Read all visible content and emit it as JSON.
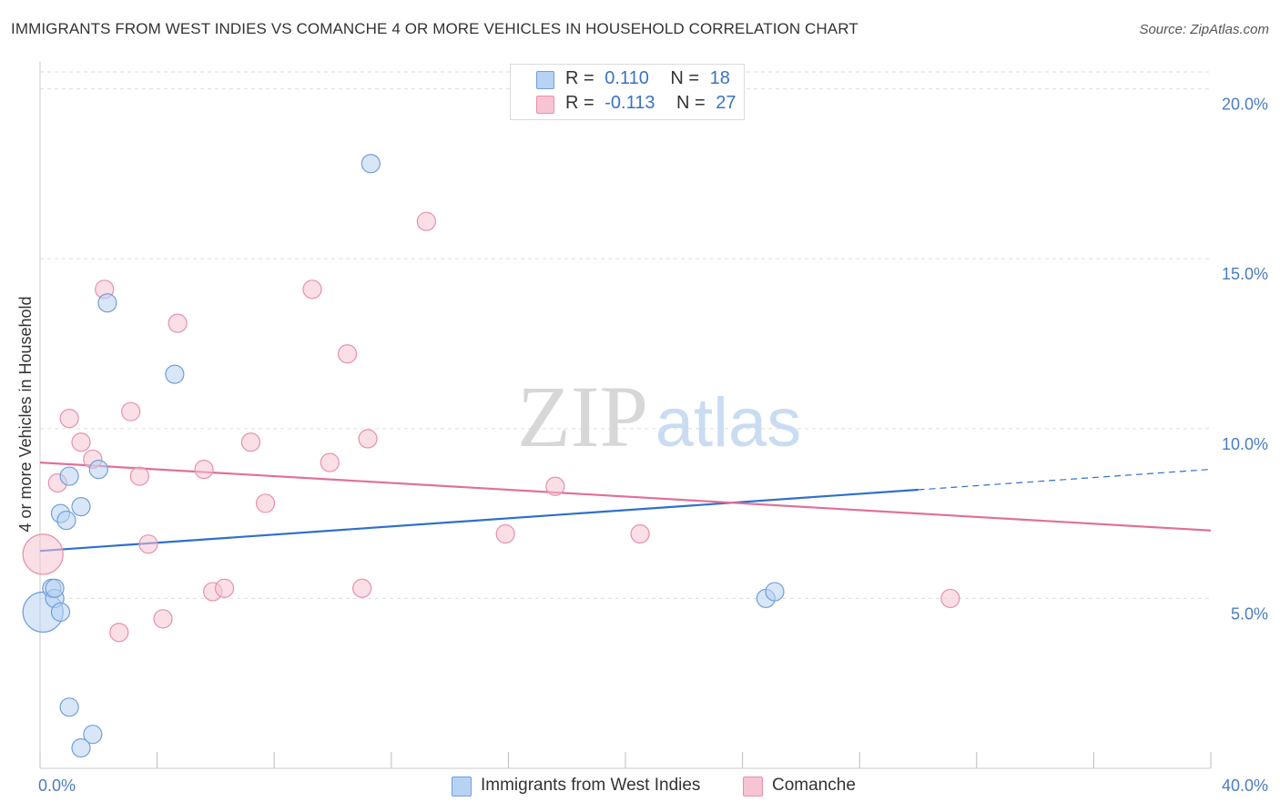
{
  "title": "IMMIGRANTS FROM WEST INDIES VS COMANCHE 4 OR MORE VEHICLES IN HOUSEHOLD CORRELATION CHART",
  "source": "Source: ZipAtlas.com",
  "watermark": {
    "zip": "ZIP",
    "atlas": "atlas"
  },
  "colors": {
    "blue_fill": "#b8d2f3",
    "blue_stroke": "#6f9fd8",
    "blue_line": "#2f6fcb",
    "pink_fill": "#f6c4d3",
    "pink_stroke": "#e890ab",
    "pink_line": "#e0709a",
    "grid": "#dedede",
    "axis_text": "#4a7cc4"
  },
  "legend": {
    "r_label": "R =",
    "n_label": "N =",
    "series": [
      {
        "r": "0.110",
        "n": "18"
      },
      {
        "r": "-0.113",
        "n": "27"
      }
    ]
  },
  "chart_data": {
    "type": "scatter",
    "title": "IMMIGRANTS FROM WEST INDIES VS COMANCHE 4 OR MORE VEHICLES IN HOUSEHOLD CORRELATION CHART",
    "xlabel": "",
    "ylabel": "4 or more Vehicles in Household",
    "xlim": [
      0,
      40
    ],
    "ylim": [
      0,
      20.5
    ],
    "x_tick_labels": [
      {
        "value": 0,
        "label": "0.0%"
      },
      {
        "value": 40,
        "label": "40.0%"
      }
    ],
    "y_tick_labels": [
      {
        "value": 5,
        "label": "5.0%"
      },
      {
        "value": 10,
        "label": "10.0%"
      },
      {
        "value": 15,
        "label": "15.0%"
      },
      {
        "value": 20,
        "label": "20.0%"
      }
    ],
    "x_minor_ticks": [
      0,
      4,
      8,
      12,
      16,
      20,
      24,
      28,
      32,
      36,
      40
    ],
    "grid": true,
    "series": [
      {
        "name": "Immigrants from West Indies",
        "color": "blue",
        "points": [
          [
            0.1,
            4.6
          ],
          [
            0.4,
            5.3
          ],
          [
            0.5,
            5.0
          ],
          [
            0.5,
            5.3
          ],
          [
            0.7,
            4.6
          ],
          [
            0.7,
            7.5
          ],
          [
            0.9,
            7.3
          ],
          [
            1.0,
            1.8
          ],
          [
            1.0,
            8.6
          ],
          [
            1.4,
            0.6
          ],
          [
            1.4,
            7.7
          ],
          [
            1.8,
            1.0
          ],
          [
            2.0,
            8.8
          ],
          [
            2.3,
            13.7
          ],
          [
            4.6,
            11.6
          ],
          [
            11.3,
            17.8
          ],
          [
            24.8,
            5.0
          ],
          [
            25.1,
            5.2
          ]
        ],
        "point_sizes": [
          22,
          10,
          10,
          10,
          10,
          10,
          10,
          10,
          10,
          10,
          10,
          10,
          10,
          10,
          10,
          10,
          10,
          10
        ],
        "trend": {
          "x_start": 0,
          "y_start": 6.4,
          "x_solid_end": 30,
          "y_solid_end": 8.2,
          "x_end": 40,
          "y_end": 8.8
        }
      },
      {
        "name": "Comanche",
        "color": "pink",
        "points": [
          [
            0.1,
            6.3
          ],
          [
            0.6,
            8.4
          ],
          [
            1.0,
            10.3
          ],
          [
            1.4,
            9.6
          ],
          [
            1.8,
            9.1
          ],
          [
            2.2,
            14.1
          ],
          [
            2.7,
            4.0
          ],
          [
            3.1,
            10.5
          ],
          [
            3.4,
            8.6
          ],
          [
            3.7,
            6.6
          ],
          [
            4.2,
            4.4
          ],
          [
            4.7,
            13.1
          ],
          [
            5.6,
            8.8
          ],
          [
            5.9,
            5.2
          ],
          [
            6.3,
            5.3
          ],
          [
            7.2,
            9.6
          ],
          [
            7.7,
            7.8
          ],
          [
            9.3,
            14.1
          ],
          [
            9.9,
            9.0
          ],
          [
            10.5,
            12.2
          ],
          [
            11.0,
            5.3
          ],
          [
            11.2,
            9.7
          ],
          [
            13.2,
            16.1
          ],
          [
            15.9,
            6.9
          ],
          [
            17.6,
            8.3
          ],
          [
            20.5,
            6.9
          ],
          [
            31.1,
            5.0
          ]
        ],
        "point_sizes": [
          22,
          10,
          10,
          10,
          10,
          10,
          10,
          10,
          10,
          10,
          10,
          10,
          10,
          10,
          10,
          10,
          10,
          10,
          10,
          10,
          10,
          10,
          10,
          10,
          10,
          10,
          10
        ],
        "trend": {
          "x_start": 0,
          "y_start": 9.0,
          "x_end": 40,
          "y_end": 7.0
        }
      }
    ]
  }
}
